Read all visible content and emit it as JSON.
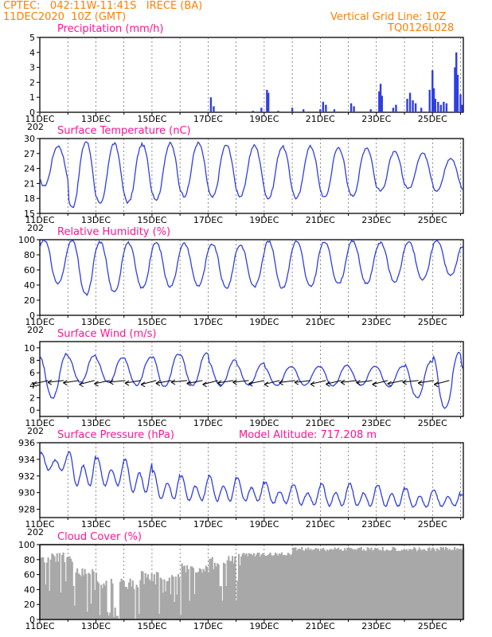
{
  "header": {
    "line1": "CPTEC:   042:11W-11:41S   IRECE (BA)",
    "line2": "11DEC2020  10Z (GMT)",
    "right1": "Vertical Grid Line: 10Z",
    "right2": "TQ0126L028"
  },
  "colors": {
    "header": "#ff7f00",
    "title": "#ff1493",
    "series": "#2f3fe0",
    "cloud": "#a8a8a8",
    "arrow": "#000000"
  },
  "x_axis": {
    "tick_labels": [
      "11DEC",
      "13DEC",
      "15DEC",
      "17DEC",
      "19DEC",
      "21DEC",
      "23DEC",
      "25DEC"
    ],
    "sub_label": "202"
  },
  "chart_data": [
    {
      "type": "bar",
      "title": "Precipitation (mm/h)",
      "ylim": [
        0,
        5
      ],
      "yticks": [
        "0",
        "1",
        "2",
        "3",
        "4",
        "5"
      ],
      "series": [
        {
          "values_by_day": [
            {
              "day": 11.0,
              "value": 0.05
            },
            {
              "day": 17.1,
              "value": 1.0
            },
            {
              "day": 17.2,
              "value": 0.4
            },
            {
              "day": 18.6,
              "value": 0.1
            },
            {
              "day": 18.9,
              "value": 0.3
            },
            {
              "day": 19.1,
              "value": 1.5
            },
            {
              "day": 19.15,
              "value": 1.3
            },
            {
              "day": 19.5,
              "value": 0.1
            },
            {
              "day": 20.0,
              "value": 0.3
            },
            {
              "day": 20.4,
              "value": 0.2
            },
            {
              "day": 21.0,
              "value": 0.2
            },
            {
              "day": 21.1,
              "value": 0.7
            },
            {
              "day": 21.2,
              "value": 0.5
            },
            {
              "day": 21.5,
              "value": 0.2
            },
            {
              "day": 22.1,
              "value": 0.6
            },
            {
              "day": 22.2,
              "value": 0.4
            },
            {
              "day": 22.8,
              "value": 0.2
            },
            {
              "day": 23.1,
              "value": 1.4
            },
            {
              "day": 23.15,
              "value": 1.9
            },
            {
              "day": 23.2,
              "value": 1.1
            },
            {
              "day": 23.6,
              "value": 0.3
            },
            {
              "day": 23.7,
              "value": 0.5
            },
            {
              "day": 24.1,
              "value": 0.9
            },
            {
              "day": 24.2,
              "value": 1.3
            },
            {
              "day": 24.3,
              "value": 0.8
            },
            {
              "day": 24.4,
              "value": 0.6
            },
            {
              "day": 24.6,
              "value": 0.3
            },
            {
              "day": 24.9,
              "value": 1.5
            },
            {
              "day": 25.0,
              "value": 2.8
            },
            {
              "day": 25.05,
              "value": 1.6
            },
            {
              "day": 25.1,
              "value": 0.9
            },
            {
              "day": 25.2,
              "value": 0.7
            },
            {
              "day": 25.3,
              "value": 0.5
            },
            {
              "day": 25.4,
              "value": 0.7
            },
            {
              "day": 25.5,
              "value": 0.6
            },
            {
              "day": 25.8,
              "value": 3.0
            },
            {
              "day": 25.85,
              "value": 4.0
            },
            {
              "day": 25.9,
              "value": 2.5
            },
            {
              "day": 26.0,
              "value": 1.2
            },
            {
              "day": 26.05,
              "value": 0.5
            }
          ]
        }
      ]
    },
    {
      "type": "line",
      "title": "Surface Temperature (nC)",
      "ylim": [
        15,
        30
      ],
      "yticks": [
        "15",
        "18",
        "21",
        "24",
        "27",
        "30"
      ],
      "daily_min": [
        20.5,
        16.2,
        16.8,
        17.2,
        17.8,
        18.5,
        18.2,
        18.4,
        18.0,
        18.0,
        18.2,
        18.5,
        19.5,
        20.0,
        19.5,
        19.5
      ],
      "daily_max": [
        28.5,
        29.4,
        29.0,
        28.8,
        29.0,
        29.1,
        28.7,
        28.6,
        28.4,
        28.4,
        28.2,
        28.2,
        27.3,
        27.1,
        26.0,
        25.3
      ]
    },
    {
      "type": "line",
      "title": "Relative Humidity (%)",
      "ylim": [
        0,
        100
      ],
      "yticks": [
        "0",
        "20",
        "40",
        "60",
        "80",
        "100"
      ],
      "daily_max": [
        100,
        99,
        97,
        96,
        96,
        95,
        94,
        93,
        98,
        98,
        97,
        98,
        96,
        97,
        99,
        92
      ],
      "daily_min": [
        42,
        27,
        30,
        36,
        38,
        39,
        36,
        38,
        36,
        38,
        42,
        42,
        44,
        47,
        53,
        63
      ]
    },
    {
      "type": "line",
      "title": "Surface Wind (m/s)",
      "ylim": [
        -1,
        11
      ],
      "yticks": [
        "0",
        "2",
        "4",
        "6",
        "8",
        "10"
      ],
      "daily_max": [
        9.0,
        8.8,
        8.4,
        8.5,
        9.0,
        9.2,
        8.0,
        7.5,
        7.0,
        7.0,
        7.2,
        7.0,
        7.1,
        7.8,
        9.2,
        7.5
      ],
      "daily_min": [
        2.0,
        4.5,
        4.4,
        4.0,
        3.8,
        4.0,
        3.9,
        4.0,
        4.0,
        4.0,
        3.9,
        4.0,
        3.8,
        2.0,
        0.3,
        2.0
      ],
      "arrows": "wind direction arrows from east-northeast"
    },
    {
      "type": "line",
      "title": "Surface Pressure (hPa)",
      "annotation": "Model Altitude:  717.208  m",
      "ylim": [
        927,
        936
      ],
      "yticks": [
        "928",
        "930",
        "932",
        "934",
        "936"
      ],
      "daily_max": [
        934.8,
        935.0,
        934.2,
        934.0,
        932.6,
        932.0,
        932.1,
        931.7,
        931.2,
        931.0,
        931.1,
        931.1,
        930.9,
        930.5,
        930.3,
        929.8
      ],
      "daily_min": [
        932.3,
        930.0,
        930.2,
        929.3,
        928.6,
        928.5,
        928.4,
        928.5,
        928.2,
        928.1,
        927.9,
        927.9,
        927.9,
        927.8,
        928.0,
        928.0
      ]
    },
    {
      "type": "bar",
      "title": "Cloud Cover (%)",
      "ylim": [
        0,
        100
      ],
      "yticks": [
        "0",
        "20",
        "40",
        "60",
        "80",
        "100"
      ],
      "description_levels": [
        {
          "from_day": 11.0,
          "to_day": 12.2,
          "value": 90
        },
        {
          "from_day": 12.2,
          "to_day": 13.0,
          "value": 70
        },
        {
          "from_day": 13.0,
          "to_day": 14.5,
          "value": 55
        },
        {
          "from_day": 14.5,
          "to_day": 16.0,
          "value": 65
        },
        {
          "from_day": 16.0,
          "to_day": 17.0,
          "value": 75
        },
        {
          "from_day": 17.0,
          "to_day": 18.0,
          "value": 85
        },
        {
          "from_day": 18.0,
          "to_day": 20.0,
          "value": 90
        },
        {
          "from_day": 20.0,
          "to_day": 26.1,
          "value": 97
        }
      ]
    }
  ]
}
